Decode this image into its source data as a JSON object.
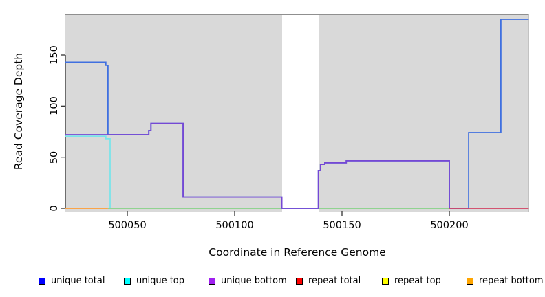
{
  "figure": {
    "background": "#ffffff",
    "plot_background": "#d9d9d9",
    "plot_top_border_color": "#8f8f8f"
  },
  "axes": {
    "x": {
      "title": "Coordinate in Reference Genome",
      "tick_labels": [
        "500050",
        "500100",
        "500150",
        "500200"
      ]
    },
    "y": {
      "title": "Read Coverage Depth",
      "tick_labels": [
        "0",
        "50",
        "100",
        "150"
      ]
    }
  },
  "legend": {
    "items": [
      {
        "label": "unique total",
        "color": "#0000FF"
      },
      {
        "label": "unique top",
        "color": "#00FFFF"
      },
      {
        "label": "unique bottom",
        "color": "#A020F0"
      },
      {
        "label": "repeat total",
        "color": "#FF0000"
      },
      {
        "label": "repeat top",
        "color": "#FFFF00"
      },
      {
        "label": "repeat bottom",
        "color": "#FFA500"
      }
    ]
  },
  "chart_data": {
    "type": "line",
    "step": true,
    "title": "",
    "xlabel": "Coordinate in Reference Genome",
    "ylabel": "Read Coverage Depth",
    "xlim": [
      500021,
      500237
    ],
    "ylim": [
      0,
      190
    ],
    "x_tick_values": [
      500050,
      500100,
      500150,
      500200
    ],
    "y_tick_values": [
      0,
      50,
      100,
      150
    ],
    "grid": false,
    "legend_position": "bottom",
    "no_data_gap": {
      "x_start": 500122,
      "x_end": 500139
    },
    "render_series": [
      {
        "name": "unique total",
        "legend_color": "#0000FF",
        "line_color": "#4070E0",
        "points": [
          [
            500021,
            143
          ],
          [
            500040,
            143
          ],
          [
            500040,
            140
          ],
          [
            500041,
            140
          ],
          [
            500041,
            72
          ],
          [
            500060,
            72
          ],
          [
            500060,
            76
          ],
          [
            500061,
            76
          ],
          [
            500061,
            83
          ],
          [
            500076,
            83
          ],
          [
            500076,
            11
          ],
          [
            500122,
            11
          ],
          [
            500122,
            0
          ],
          [
            500139,
            0
          ],
          [
            500139,
            37
          ],
          [
            500140,
            37
          ],
          [
            500140,
            43
          ],
          [
            500142,
            43
          ],
          [
            500142,
            44.5
          ],
          [
            500152,
            44.5
          ],
          [
            500152,
            46.5
          ],
          [
            500200,
            46.5
          ],
          [
            500200,
            0
          ],
          [
            500209,
            0
          ],
          [
            500209,
            74
          ],
          [
            500224,
            74
          ],
          [
            500224,
            185
          ],
          [
            500237,
            185
          ]
        ]
      },
      {
        "name": "unique top",
        "legend_color": "#00FFFF",
        "line_color": "#7AE4EA",
        "points": [
          [
            500021,
            70.5
          ],
          [
            500040,
            70.5
          ],
          [
            500040,
            68
          ],
          [
            500042,
            68
          ],
          [
            500042,
            0
          ]
        ]
      },
      {
        "name": "unique top + repeat top overlap at zero (a)",
        "legend_color": null,
        "line_color": "#85D285",
        "points": [
          [
            500041,
            0
          ],
          [
            500122,
            0
          ]
        ]
      },
      {
        "name": "unique top + repeat top overlap at zero (b)",
        "legend_color": null,
        "line_color": "#85D285",
        "points": [
          [
            500139,
            0
          ],
          [
            500200,
            0
          ]
        ]
      },
      {
        "name": "unique bottom",
        "legend_color": "#A020F0",
        "line_color": "#7648D4",
        "points": [
          [
            500021,
            72
          ],
          [
            500060,
            72
          ],
          [
            500060,
            76
          ],
          [
            500061,
            76
          ],
          [
            500061,
            83
          ],
          [
            500076,
            83
          ],
          [
            500076,
            11
          ],
          [
            500122,
            11
          ],
          [
            500122,
            0
          ],
          [
            500139,
            0
          ],
          [
            500139,
            37
          ],
          [
            500140,
            37
          ],
          [
            500140,
            43
          ],
          [
            500142,
            43
          ],
          [
            500142,
            44.5
          ],
          [
            500152,
            44.5
          ],
          [
            500152,
            46.5
          ],
          [
            500200,
            46.5
          ],
          [
            500200,
            0
          ]
        ]
      },
      {
        "name": "repeat bottom",
        "legend_color": "#FFA500",
        "line_color": "#FF9D33",
        "points": [
          [
            500021,
            0
          ],
          [
            500041,
            0
          ]
        ]
      },
      {
        "name": "repeat total",
        "legend_color": "#FF0000",
        "line_color": "#D24062",
        "points": [
          [
            500200,
            0
          ],
          [
            500237,
            0
          ]
        ]
      }
    ]
  }
}
